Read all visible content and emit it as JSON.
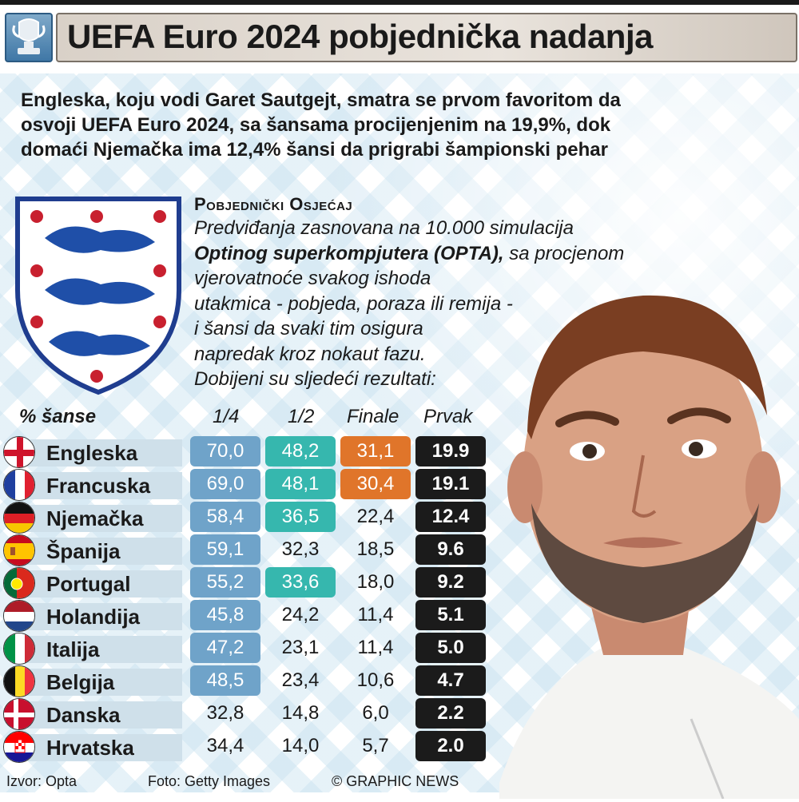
{
  "header": {
    "title": "UEFA Euro 2024 pobjednička nadanja"
  },
  "intro": {
    "line1": "Engleska, koju vodi Garet Sautgejt, smatra se prvom favoritom da",
    "line2": "osvoji UEFA Euro 2024, sa šansama procijenjenim na 19,9%, dok",
    "line3": "domaći Njemačka ima 12,4% šansi da prigrabi šampionski pehar"
  },
  "sidebar": {
    "title": "Pobjednički Osjećaj",
    "line1": "Predviđanja zasnovana na 10.000 simulacija",
    "line2_bold": "Optinog superkompjutera (OPTA),",
    "line2_rest": " sa procjenom",
    "line3": "vjerovatnoće svakog ishoda",
    "line4": "utakmica - pobjeda, poraza ili remija -",
    "line5": "i šansi da svaki tim osigura",
    "line6": "napredak kroz nokaut fazu.",
    "line7": "Dobijeni su sljedeći rezultati:"
  },
  "table": {
    "headers": [
      "% šanse",
      "1/4",
      "1/2",
      "Finale",
      "Prvak"
    ],
    "rows": [
      {
        "team": "Engleska",
        "flag": "england-flag",
        "q": "70,0",
        "s": "48,2",
        "f": "31,1",
        "w": "19.9"
      },
      {
        "team": "Francuska",
        "flag": "france-flag",
        "q": "69,0",
        "s": "48,1",
        "f": "30,4",
        "w": "19.1"
      },
      {
        "team": "Njemačka",
        "flag": "germany-flag",
        "q": "58,4",
        "s": "36,5",
        "f": "22,4",
        "w": "12.4"
      },
      {
        "team": "Španija",
        "flag": "spain-flag",
        "q": "59,1",
        "s": "32,3",
        "f": "18,5",
        "w": "9.6"
      },
      {
        "team": "Portugal",
        "flag": "portugal-flag",
        "q": "55,2",
        "s": "33,6",
        "f": "18,0",
        "w": "9.2"
      },
      {
        "team": "Holandija",
        "flag": "netherlands-flag",
        "q": "45,8",
        "s": "24,2",
        "f": "11,4",
        "w": "5.1"
      },
      {
        "team": "Italija",
        "flag": "italy-flag",
        "q": "47,2",
        "s": "23,1",
        "f": "11,4",
        "w": "5.0"
      },
      {
        "team": "Belgija",
        "flag": "belgium-flag",
        "q": "48,5",
        "s": "23,4",
        "f": "10,6",
        "w": "4.7"
      },
      {
        "team": "Danska",
        "flag": "denmark-flag",
        "q": "32,8",
        "s": "14,8",
        "f": "6,0",
        "w": "2.2"
      },
      {
        "team": "Hrvatska",
        "flag": "croatia-flag",
        "q": "34,4",
        "s": "14,0",
        "f": "5,7",
        "w": "2.0"
      }
    ]
  },
  "colors": {
    "highlight_quarter": "#6fa3c9",
    "highlight_semi": "#36b7ae",
    "highlight_final": "#e0752a",
    "winner_bg": "#1b1b1b"
  },
  "footer": {
    "source": "Izvor: Opta",
    "photo": "Foto: Getty Images",
    "credit": "© GRAPHIC NEWS"
  }
}
